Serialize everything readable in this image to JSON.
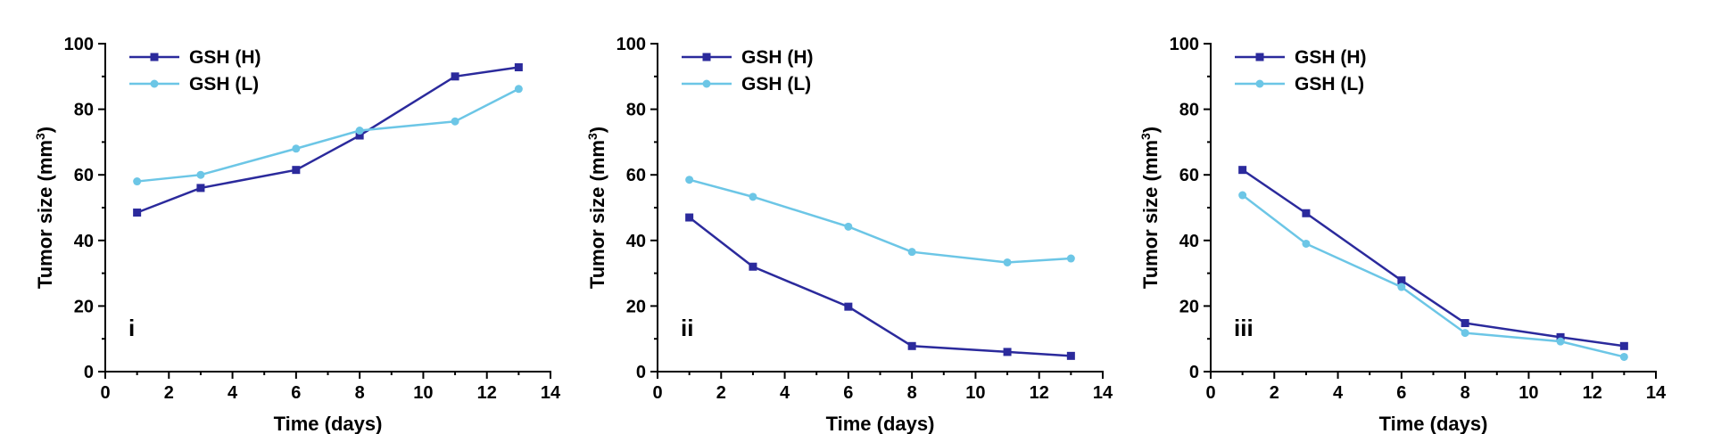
{
  "colors": {
    "high": "#2b2a9c",
    "low": "#6cc6e6",
    "axis": "#000000"
  },
  "chart_data": [
    {
      "type": "line",
      "panel_label": "i",
      "xlabel": "Time (days)",
      "ylabel": "Tumor size (mm3)",
      "xlim": [
        0,
        14
      ],
      "ylim": [
        0,
        100
      ],
      "xticks": [
        "0",
        "2",
        "4",
        "6",
        "8",
        "10",
        "12",
        "14"
      ],
      "yticks": [
        "0",
        "20",
        "40",
        "60",
        "80",
        "100"
      ],
      "legend_position": "top-left",
      "grid": false,
      "x": [
        1,
        3,
        6,
        8,
        11,
        13
      ],
      "series": [
        {
          "name": "GSH (H)",
          "marker": "square",
          "color": "#2b2a9c",
          "values": [
            48.5,
            56,
            61.5,
            72,
            90,
            92.8
          ]
        },
        {
          "name": "GSH (L)",
          "marker": "circle",
          "color": "#6cc6e6",
          "values": [
            58,
            60,
            68,
            73.5,
            76.3,
            86.2
          ]
        }
      ]
    },
    {
      "type": "line",
      "panel_label": "ii",
      "xlabel": "Time (days)",
      "ylabel": "Tumor size (mm3)",
      "xlim": [
        0,
        14
      ],
      "ylim": [
        0,
        100
      ],
      "xticks": [
        "0",
        "2",
        "4",
        "6",
        "8",
        "10",
        "12",
        "14"
      ],
      "yticks": [
        "0",
        "20",
        "40",
        "60",
        "80",
        "100"
      ],
      "legend_position": "top-left",
      "grid": false,
      "x": [
        1,
        3,
        6,
        8,
        11,
        13
      ],
      "series": [
        {
          "name": "GSH (H)",
          "marker": "square",
          "color": "#2b2a9c",
          "values": [
            47,
            32,
            19.8,
            7.8,
            6,
            4.8
          ]
        },
        {
          "name": "GSH (L)",
          "marker": "circle",
          "color": "#6cc6e6",
          "values": [
            58.5,
            53.3,
            44.2,
            36.5,
            33.3,
            34.5
          ]
        }
      ]
    },
    {
      "type": "line",
      "panel_label": "iii",
      "xlabel": "Time (days)",
      "ylabel": "Tumor size (mm3)",
      "xlim": [
        0,
        14
      ],
      "ylim": [
        0,
        100
      ],
      "xticks": [
        "0",
        "2",
        "4",
        "6",
        "8",
        "10",
        "12",
        "14"
      ],
      "yticks": [
        "0",
        "20",
        "40",
        "60",
        "80",
        "100"
      ],
      "legend_position": "top-left",
      "grid": false,
      "x": [
        1,
        3,
        6,
        8,
        11,
        13
      ],
      "series": [
        {
          "name": "GSH (H)",
          "marker": "square",
          "color": "#2b2a9c",
          "values": [
            61.5,
            48.3,
            27.8,
            14.8,
            10.5,
            7.8
          ]
        },
        {
          "name": "GSH (L)",
          "marker": "circle",
          "color": "#6cc6e6",
          "values": [
            53.8,
            39,
            25.8,
            11.8,
            9.2,
            4.5
          ]
        }
      ]
    }
  ]
}
